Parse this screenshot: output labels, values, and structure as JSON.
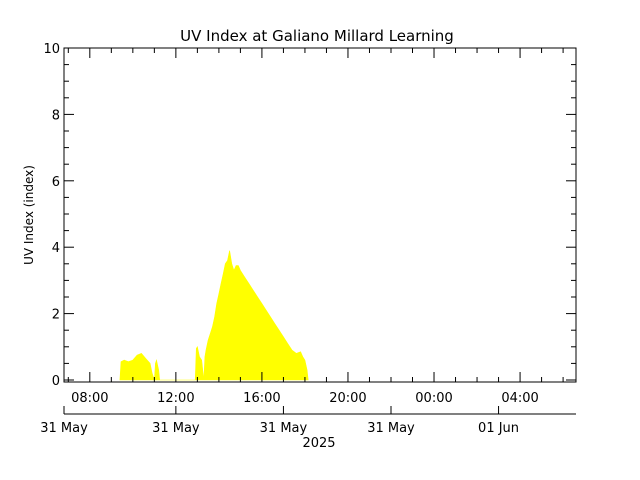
{
  "chart_data": {
    "type": "area",
    "title": "UV Index at Galiano Millard Learning",
    "ylabel": "UV Index (index)",
    "xlabel": "",
    "year_label": "2025",
    "x_unit": "hours from 31 May 00:00",
    "xlim": [
      6.8,
      30.6
    ],
    "ylim": [
      0,
      10
    ],
    "y_ticks": [
      {
        "value": 0,
        "label": "0"
      },
      {
        "value": 2,
        "label": "2"
      },
      {
        "value": 4,
        "label": "4"
      },
      {
        "value": 6,
        "label": "6"
      },
      {
        "value": 8,
        "label": "8"
      },
      {
        "value": 10,
        "label": "10"
      }
    ],
    "x_time_ticks": [
      {
        "value": 8,
        "label": "08:00"
      },
      {
        "value": 12,
        "label": "12:00"
      },
      {
        "value": 16,
        "label": "16:00"
      },
      {
        "value": 20,
        "label": "20:00"
      },
      {
        "value": 24,
        "label": "00:00"
      },
      {
        "value": 28,
        "label": "04:00"
      }
    ],
    "x_date_ticks": [
      {
        "value": 6.8,
        "label": "31 May"
      },
      {
        "value": 12,
        "label": "31 May"
      },
      {
        "value": 17,
        "label": "31 May"
      },
      {
        "value": 22,
        "label": "31 May"
      },
      {
        "value": 27,
        "label": "01 Jun"
      }
    ],
    "grid": false,
    "fill_color": "#ffff00",
    "series": [
      {
        "x": [
          9.4,
          9.45,
          9.6,
          9.8,
          10.0,
          10.2,
          10.4,
          10.6,
          10.8,
          10.9,
          11.0,
          11.05,
          11.1,
          11.2,
          11.25,
          11.3,
          11.35,
          11.4,
          11.45,
          12.9,
          12.95,
          13.0,
          13.1,
          13.2,
          13.3,
          13.35,
          13.4,
          13.5,
          13.6,
          13.7,
          13.8,
          13.9,
          14.0,
          14.1,
          14.2,
          14.3,
          14.4,
          14.5,
          14.6,
          14.7,
          14.8,
          14.9,
          15.0,
          15.2,
          15.4,
          15.6,
          15.8,
          16.0,
          16.2,
          16.4,
          16.6,
          16.8,
          17.0,
          17.2,
          17.4,
          17.6,
          17.8,
          17.9,
          18.0,
          18.1,
          18.15
        ],
        "y": [
          0,
          0.55,
          0.6,
          0.55,
          0.6,
          0.75,
          0.8,
          0.65,
          0.5,
          0.2,
          0,
          0.5,
          0.6,
          0.3,
          0,
          0,
          0,
          0,
          0,
          0,
          0.95,
          1.0,
          0.7,
          0.6,
          0,
          0.7,
          0.9,
          1.2,
          1.4,
          1.6,
          1.9,
          2.3,
          2.6,
          2.9,
          3.2,
          3.5,
          3.6,
          3.9,
          3.5,
          3.3,
          3.45,
          3.45,
          3.3,
          3.1,
          2.9,
          2.7,
          2.5,
          2.3,
          2.1,
          1.9,
          1.7,
          1.5,
          1.3,
          1.1,
          0.9,
          0.8,
          0.85,
          0.7,
          0.6,
          0.3,
          0
        ]
      }
    ]
  }
}
